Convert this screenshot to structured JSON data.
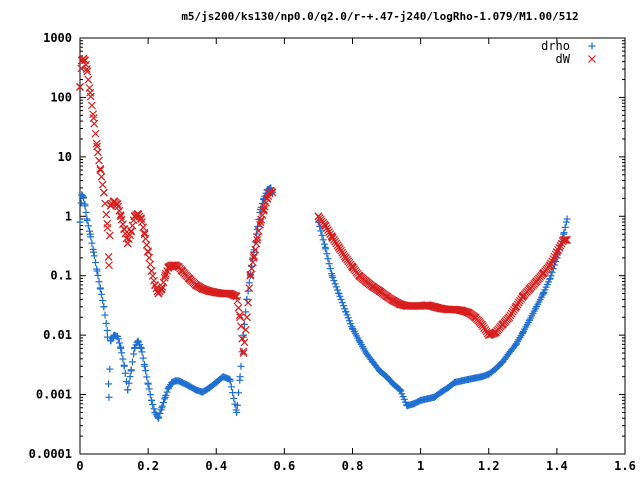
{
  "chart_data": {
    "type": "scatter",
    "title": "m5/js200/ks130/np0.0/q2.0/r-+.47-j240/logRho-1.079/M1.00/512",
    "xlabel": "",
    "ylabel": "",
    "xlim": [
      0,
      1.6
    ],
    "ylim": [
      0.0001,
      1000
    ],
    "yscale": "log",
    "grid": false,
    "legend_position": "top-right",
    "x_ticks": [
      "0",
      "0.2",
      "0.4",
      "0.6",
      "0.8",
      "1",
      "1.2",
      "1.4",
      "1.6"
    ],
    "x_tick_values": [
      0,
      0.2,
      0.4,
      0.6,
      0.8,
      1.0,
      1.2,
      1.4,
      1.6
    ],
    "y_ticks": [
      "0.0001",
      "0.001",
      "0.01",
      "0.1",
      "1",
      "10",
      "100",
      "1000"
    ],
    "y_tick_values": [
      0.0001,
      0.001,
      0.01,
      0.1,
      1,
      10,
      100,
      1000
    ],
    "series": [
      {
        "name": "drho",
        "marker": "plus",
        "color": "#1e6fd0",
        "x": [
          0.0,
          0.005,
          0.01,
          0.015,
          0.02,
          0.03,
          0.04,
          0.05,
          0.06,
          0.07,
          0.08,
          0.085,
          0.09,
          0.1,
          0.11,
          0.12,
          0.13,
          0.14,
          0.15,
          0.16,
          0.17,
          0.18,
          0.19,
          0.2,
          0.21,
          0.22,
          0.23,
          0.24,
          0.25,
          0.26,
          0.27,
          0.28,
          0.29,
          0.3,
          0.32,
          0.34,
          0.36,
          0.38,
          0.4,
          0.42,
          0.44,
          0.46,
          0.47,
          0.48,
          0.49,
          0.5,
          0.51,
          0.52,
          0.53,
          0.54,
          0.55,
          0.56,
          0.565,
          0.7,
          0.72,
          0.74,
          0.76,
          0.78,
          0.8,
          0.82,
          0.84,
          0.86,
          0.88,
          0.9,
          0.92,
          0.94,
          0.96,
          0.98,
          1.0,
          1.02,
          1.04,
          1.06,
          1.08,
          1.1,
          1.12,
          1.14,
          1.16,
          1.18,
          1.2,
          1.22,
          1.24,
          1.26,
          1.28,
          1.3,
          1.32,
          1.34,
          1.36,
          1.38,
          1.4,
          1.42,
          1.43
        ],
        "y": [
          0.8,
          2.3,
          2.1,
          1.5,
          0.9,
          0.5,
          0.25,
          0.12,
          0.06,
          0.03,
          0.012,
          0.0009,
          0.008,
          0.01,
          0.0095,
          0.006,
          0.003,
          0.0012,
          0.0025,
          0.006,
          0.008,
          0.006,
          0.003,
          0.0015,
          0.0008,
          0.0005,
          0.0004,
          0.0006,
          0.0009,
          0.0013,
          0.0016,
          0.0017,
          0.0017,
          0.0016,
          0.0014,
          0.0012,
          0.0011,
          0.0013,
          0.0016,
          0.002,
          0.0018,
          0.0005,
          0.002,
          0.01,
          0.04,
          0.1,
          0.25,
          0.6,
          1.3,
          2.0,
          2.8,
          3.0,
          2.5,
          0.8,
          0.3,
          0.1,
          0.05,
          0.025,
          0.013,
          0.008,
          0.005,
          0.0035,
          0.0025,
          0.002,
          0.0015,
          0.0012,
          0.00065,
          0.0007,
          0.0008,
          0.00085,
          0.0009,
          0.0011,
          0.0013,
          0.0016,
          0.0017,
          0.0018,
          0.0019,
          0.002,
          0.0022,
          0.0027,
          0.0035,
          0.005,
          0.007,
          0.011,
          0.018,
          0.03,
          0.05,
          0.09,
          0.2,
          0.5,
          0.9
        ]
      },
      {
        "name": "dW",
        "marker": "cross",
        "color": "#d81e1e",
        "x": [
          0.0,
          0.005,
          0.01,
          0.015,
          0.02,
          0.03,
          0.04,
          0.05,
          0.06,
          0.07,
          0.08,
          0.085,
          0.09,
          0.1,
          0.11,
          0.12,
          0.13,
          0.14,
          0.15,
          0.16,
          0.17,
          0.18,
          0.19,
          0.2,
          0.21,
          0.22,
          0.23,
          0.24,
          0.25,
          0.26,
          0.27,
          0.28,
          0.29,
          0.3,
          0.32,
          0.34,
          0.36,
          0.38,
          0.4,
          0.42,
          0.44,
          0.46,
          0.47,
          0.48,
          0.49,
          0.5,
          0.51,
          0.52,
          0.53,
          0.54,
          0.55,
          0.56,
          0.565,
          0.7,
          0.72,
          0.74,
          0.76,
          0.78,
          0.8,
          0.82,
          0.84,
          0.86,
          0.88,
          0.9,
          0.92,
          0.94,
          0.96,
          0.98,
          1.0,
          1.02,
          1.04,
          1.06,
          1.08,
          1.1,
          1.12,
          1.14,
          1.16,
          1.18,
          1.2,
          1.22,
          1.24,
          1.26,
          1.28,
          1.3,
          1.32,
          1.34,
          1.36,
          1.38,
          1.4,
          1.42,
          1.43
        ],
        "y": [
          150,
          420,
          450,
          420,
          300,
          120,
          45,
          15,
          6,
          2.5,
          0.75,
          0.15,
          1.5,
          1.8,
          1.6,
          1.0,
          0.6,
          0.35,
          0.55,
          1.0,
          1.1,
          0.9,
          0.5,
          0.25,
          0.12,
          0.07,
          0.05,
          0.06,
          0.1,
          0.14,
          0.15,
          0.15,
          0.14,
          0.12,
          0.09,
          0.07,
          0.06,
          0.055,
          0.052,
          0.05,
          0.05,
          0.045,
          0.02,
          0.005,
          0.02,
          0.1,
          0.2,
          0.4,
          0.8,
          1.3,
          2.0,
          2.7,
          2.5,
          1.0,
          0.7,
          0.45,
          0.3,
          0.2,
          0.14,
          0.1,
          0.08,
          0.065,
          0.055,
          0.045,
          0.038,
          0.033,
          0.031,
          0.031,
          0.031,
          0.032,
          0.03,
          0.028,
          0.027,
          0.027,
          0.026,
          0.024,
          0.02,
          0.015,
          0.01,
          0.011,
          0.015,
          0.02,
          0.03,
          0.045,
          0.06,
          0.08,
          0.11,
          0.15,
          0.25,
          0.4,
          0.4
        ]
      }
    ]
  }
}
